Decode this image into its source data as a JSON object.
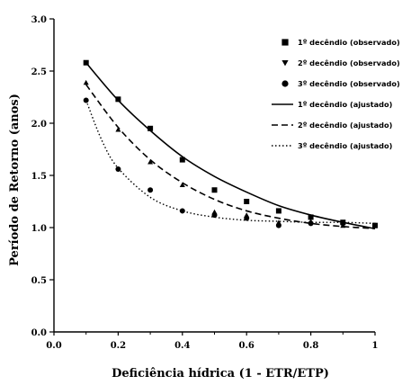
{
  "chart_data": {
    "type": "scatter",
    "title": "",
    "xlabel": "Deficiência hídrica (1 - ETR/ETP)",
    "ylabel": "Período de Retorno (anos)",
    "xlim": [
      0.0,
      1.0
    ],
    "ylim": [
      0.0,
      3.0
    ],
    "x_ticks": [
      "0.0",
      "0.2",
      "0.4",
      "0.6",
      "0.8",
      "1"
    ],
    "y_ticks": [
      "0.0",
      "0.5",
      "1.0",
      "1.5",
      "2.0",
      "2.5",
      "3.0"
    ],
    "grid": false,
    "legend_position": "top-right",
    "observed": [
      {
        "name": "1º decêndio (observado)",
        "marker": "square",
        "x": [
          0.1,
          0.2,
          0.3,
          0.4,
          0.5,
          0.6,
          0.7,
          0.8,
          0.9,
          1.0
        ],
        "y": [
          2.58,
          2.23,
          1.95,
          1.65,
          1.36,
          1.25,
          1.16,
          1.1,
          1.05,
          1.02
        ]
      },
      {
        "name": "2º decêndio (observado)",
        "marker": "triangle-down",
        "x": [
          0.1,
          0.2,
          0.3,
          0.4,
          0.5,
          0.6,
          0.7,
          0.8,
          0.9,
          1.0
        ],
        "y": [
          2.39,
          1.94,
          1.63,
          1.41,
          1.15,
          1.12,
          1.05,
          1.06,
          1.02,
          1.02
        ]
      },
      {
        "name": "3º decêndio (observado)",
        "marker": "circle",
        "x": [
          0.1,
          0.2,
          0.3,
          0.4,
          0.5,
          0.6,
          0.7,
          0.8,
          0.9,
          1.0
        ],
        "y": [
          2.22,
          1.56,
          1.36,
          1.16,
          1.12,
          1.09,
          1.02,
          1.04,
          1.04,
          1.02
        ]
      }
    ],
    "fitted": [
      {
        "name": "1º decêndio (ajustado)",
        "line_style": "solid",
        "x": [
          0.1,
          0.2,
          0.3,
          0.4,
          0.5,
          0.6,
          0.7,
          0.8,
          0.9,
          1.0
        ],
        "y": [
          2.58,
          2.22,
          1.93,
          1.68,
          1.49,
          1.34,
          1.21,
          1.12,
          1.05,
          0.99
        ]
      },
      {
        "name": "2º decêndio (ajustado)",
        "line_style": "dashed",
        "x": [
          0.1,
          0.2,
          0.3,
          0.4,
          0.5,
          0.6,
          0.7,
          0.8,
          0.9,
          1.0
        ],
        "y": [
          2.37,
          1.96,
          1.65,
          1.43,
          1.27,
          1.16,
          1.09,
          1.04,
          1.01,
          0.99
        ]
      },
      {
        "name": "3º decêndio (ajustado)",
        "line_style": "dotted",
        "x": [
          0.1,
          0.15,
          0.2,
          0.3,
          0.4,
          0.5,
          0.6,
          0.7,
          0.8,
          0.9,
          1.0
        ],
        "y": [
          2.22,
          1.83,
          1.57,
          1.29,
          1.16,
          1.1,
          1.07,
          1.06,
          1.05,
          1.05,
          1.04
        ]
      }
    ]
  }
}
